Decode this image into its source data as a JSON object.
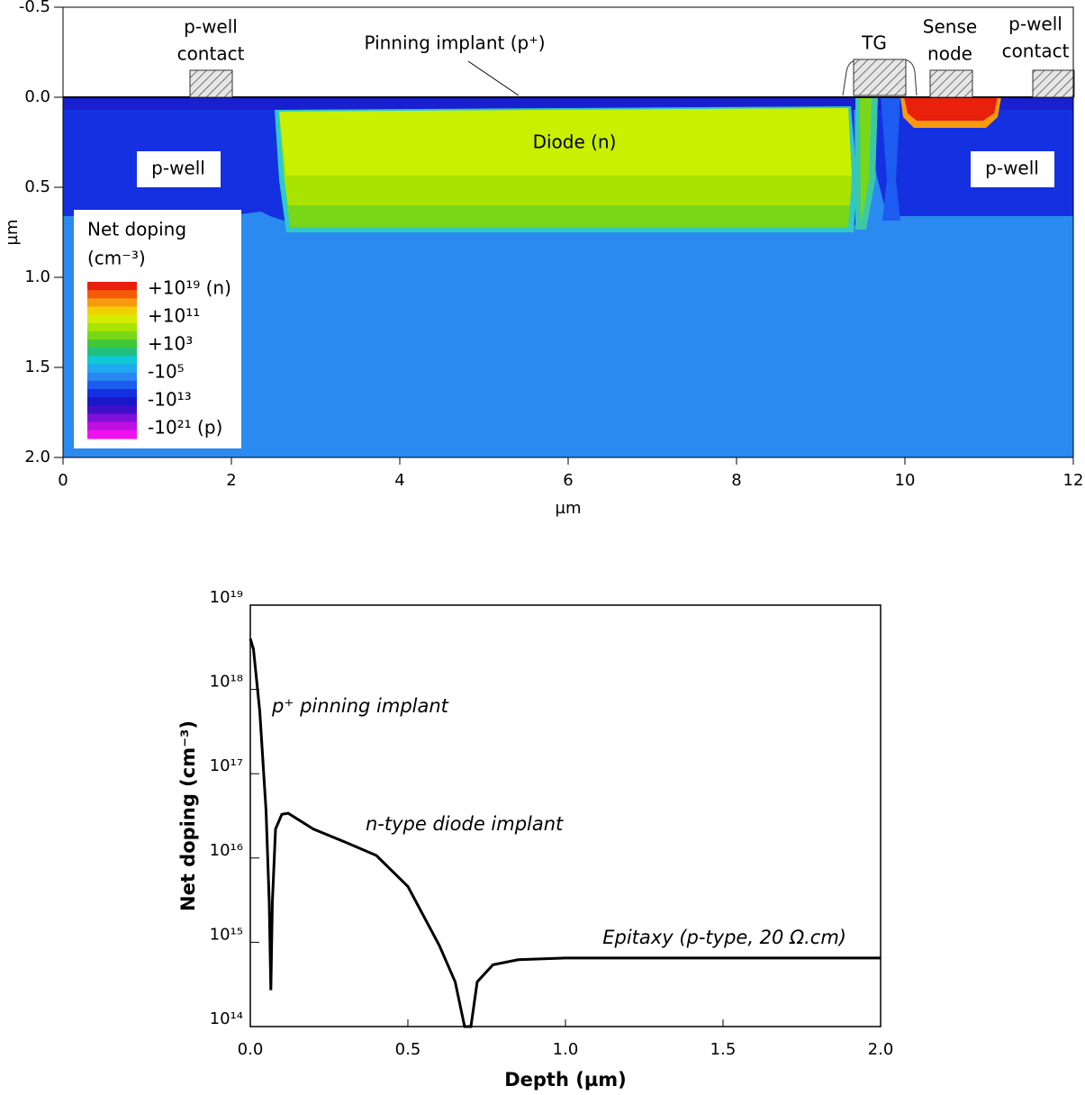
{
  "chart_data": [
    {
      "type": "doping_map",
      "xlabel": "µm",
      "ylabel": "µm",
      "xlim": [
        0,
        12
      ],
      "ylim": [
        -0.5,
        2.0
      ],
      "y_inverted": true,
      "xticks": [
        0,
        2,
        4,
        6,
        8,
        10,
        12
      ],
      "yticks": [
        -0.5,
        {
          "value": 0,
          "label": "0.0"
        },
        0.5,
        {
          "value": 1,
          "label": "1.0"
        },
        1.5,
        {
          "value": 2,
          "label": "2.0"
        }
      ],
      "annotations": [
        "p-well",
        "contact",
        "Pinning implant (p⁺)",
        "TG",
        "Sense",
        "node",
        "p-well",
        "contact",
        "Diode (n)",
        "p-well",
        "p-well"
      ],
      "legend": {
        "title": "Net doping",
        "unit": "(cm⁻³)",
        "labels": [
          "+10¹⁹ (n)",
          "+10¹¹",
          "+10³",
          "-10⁵",
          "-10¹³",
          "-10²¹ (p)"
        ],
        "colors": [
          "#e8200c",
          "#f45a08",
          "#f89a10",
          "#f0d000",
          "#d4ec00",
          "#a8e400",
          "#78d818",
          "#40c838",
          "#20c080",
          "#10c8d8",
          "#20a8f0",
          "#2a86f0",
          "#1c5cf0",
          "#1430e0",
          "#1818c8",
          "#4010c8",
          "#8010d8",
          "#c010e0",
          "#f010f0"
        ]
      }
    },
    {
      "type": "line",
      "xlabel": "Depth (µm)",
      "ylabel": "Net doping (cm⁻³)",
      "xlim": [
        0,
        2
      ],
      "ylim": [
        100000000000000.0,
        1e+19
      ],
      "log_y": true,
      "color": "#000000",
      "xticks": [
        {
          "value": 0,
          "label": "0.0"
        },
        0.5,
        {
          "value": 1,
          "label": "1.0"
        },
        1.5,
        {
          "value": 2,
          "label": "2.0"
        }
      ],
      "yticks": [
        {
          "value": 100000000000000.0,
          "label": "10¹⁴"
        },
        {
          "value": 1000000000000000.0,
          "label": "10¹⁵"
        },
        {
          "value": 1e+16,
          "label": "10¹⁶"
        },
        {
          "value": 1e+17,
          "label": "10¹⁷"
        },
        {
          "value": 1e+18,
          "label": "10¹⁸"
        },
        {
          "value": 1e+19,
          "label": "10¹⁹"
        }
      ],
      "annotations": [
        "p⁺ pinning implant",
        "n-type diode implant",
        "Epitaxy (p-type, 20 Ω.cm)"
      ],
      "x": [
        0,
        0.01,
        0.03,
        0.05,
        0.06,
        0.065,
        0.07,
        0.08,
        0.1,
        0.12,
        0.2,
        0.3,
        0.4,
        0.5,
        0.6,
        0.65,
        0.68,
        0.7,
        0.72,
        0.77,
        0.85,
        1.0,
        2.0
      ],
      "values": [
        4e+18,
        3e+18,
        5.5e+17,
        3.6e+16,
        3000000000000000.0,
        270000000000000.0,
        3000000000000000.0,
        2.2e+16,
        3.3e+16,
        3.4e+16,
        2.2e+16,
        1.55e+16,
        1.07e+16,
        4600000000000000.0,
        910000000000000.0,
        340000000000000.0,
        100000000000000.0,
        100000000000000.0,
        340000000000000.0,
        540000000000000.0,
        620000000000000.0,
        650000000000000.0,
        650000000000000.0
      ]
    }
  ]
}
